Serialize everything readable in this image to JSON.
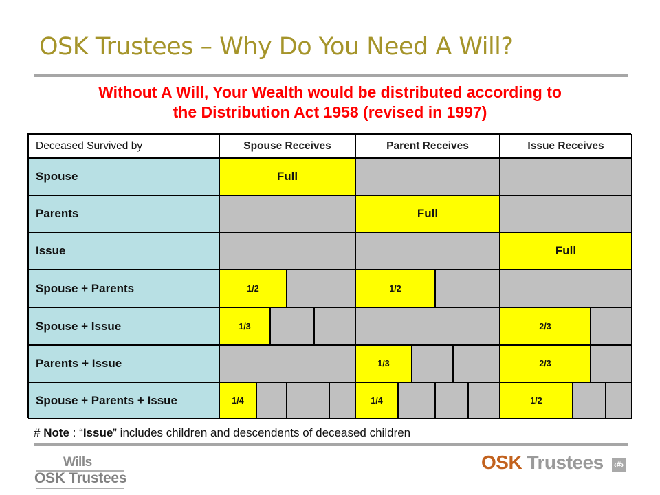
{
  "title": "OSK Trustees – Why Do You Need A Will?",
  "subtitle": {
    "line1": "Without A Will, Your Wealth would be distributed according to",
    "line2": "the Distribution Act 1958 (revised in 1997)"
  },
  "table": {
    "headers": [
      "Deceased Survived by",
      "Spouse Receives",
      "Parent Receives",
      "Issue Receives"
    ],
    "rows": [
      {
        "label": "Spouse",
        "spouse": "Full",
        "parent": "",
        "issue": ""
      },
      {
        "label": "Parents",
        "spouse": "",
        "parent": "Full",
        "issue": ""
      },
      {
        "label": "Issue",
        "spouse": "",
        "parent": "",
        "issue": "Full"
      },
      {
        "label": "Spouse + Parents",
        "spouse": "1/2",
        "parent": "1/2",
        "issue": ""
      },
      {
        "label": "Spouse + Issue",
        "spouse": "1/3",
        "parent": "",
        "issue": "2/3"
      },
      {
        "label": "Parents + Issue",
        "spouse": "",
        "parent": "1/3",
        "issue": "2/3"
      },
      {
        "label": "Spouse + Parents + Issue",
        "spouse": "1/4",
        "parent": "1/4",
        "issue": "1/2"
      }
    ]
  },
  "note": {
    "prefix": "# ",
    "bold": "Note",
    "text1": " : “",
    "issue_word": "Issue",
    "text2": "” includes children and descendents of deceased children"
  },
  "logo_left": {
    "line1": "Wills",
    "line2": "OSK Trustees"
  },
  "logo_right": {
    "part1": "OSK",
    "part2": " Trustees"
  },
  "page_number": "‹#›",
  "colors": {
    "title": "#a5942a",
    "subtitle": "#ff0000",
    "row_label_bg": "#b8e0e4",
    "highlight": "#ffff00",
    "empty_cell": "#c0c0c0",
    "brand_orange": "#c2621e"
  }
}
